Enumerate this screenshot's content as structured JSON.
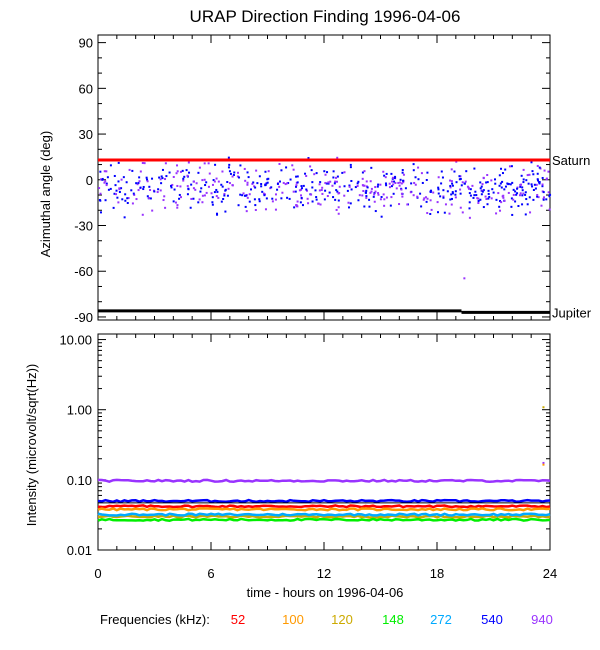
{
  "chart_data": {
    "title": "URAP Direction Finding  1996-04-06",
    "xlabel": "time - hours on 1996-04-06",
    "xlim": [
      0,
      24
    ],
    "xticks": [
      0,
      6,
      12,
      18,
      24
    ],
    "panels": [
      {
        "type": "scatter",
        "ylabel": "Azimuthal angle (deg)",
        "ylim": [
          -92,
          95
        ],
        "yticks": [
          90,
          60,
          30,
          0,
          -30,
          -60,
          -90
        ],
        "lines": [
          {
            "name": "Saturn",
            "color": "#ff0000",
            "y": 13
          },
          {
            "name": "Jupiter",
            "color": "#000000",
            "segments": [
              {
                "x": [
                  0,
                  19.3
                ],
                "y": -86
              },
              {
                "x": [
                  19.3,
                  24
                ],
                "y": -87
              }
            ]
          }
        ],
        "scatter": {
          "x_range": [
            0,
            24
          ],
          "y_center": -5,
          "y_spread": 11,
          "colors": [
            "#0000ff",
            "#9933ff"
          ],
          "outliers": [
            {
              "x": 19.4,
              "y": -64,
              "color": "#9933ff"
            }
          ]
        }
      },
      {
        "type": "line",
        "scale": "log",
        "ylabel": "Intensity (microvolt/sqrt(Hz))",
        "ylim": [
          0.01,
          12
        ],
        "yticks": [
          10.0,
          1.0,
          0.1,
          0.01
        ],
        "ytick_labels": [
          "10.00",
          "1.00",
          "0.10",
          "0.01"
        ],
        "series": [
          {
            "name": "52",
            "color": "#ff0000",
            "value": 0.042
          },
          {
            "name": "100",
            "color": "#ff9900",
            "value": 0.038
          },
          {
            "name": "120",
            "color": "#ccaa00",
            "value": 0.03
          },
          {
            "name": "148",
            "color": "#00ee00",
            "value": 0.027
          },
          {
            "name": "272",
            "color": "#00aaff",
            "value": 0.032
          },
          {
            "name": "540",
            "color": "#0000ff",
            "value": 0.05
          },
          {
            "name": "940",
            "color": "#9933ff",
            "value": 0.097
          }
        ],
        "black_line": 0.047,
        "outliers": [
          {
            "x": 23.6,
            "y": 1.12,
            "color": "#ccaa00"
          },
          {
            "x": 23.6,
            "y": 0.18,
            "color": "#9933ff"
          },
          {
            "x": 23.6,
            "y": 0.17,
            "color": "#ff9900"
          }
        ]
      }
    ],
    "legend": {
      "label": "Frequencies (kHz):",
      "items": [
        {
          "name": "52",
          "color": "#ff0000"
        },
        {
          "name": "100",
          "color": "#ff9900"
        },
        {
          "name": "120",
          "color": "#ccaa00"
        },
        {
          "name": "148",
          "color": "#00ee00"
        },
        {
          "name": "272",
          "color": "#00aaff"
        },
        {
          "name": "540",
          "color": "#0000ff"
        },
        {
          "name": "940",
          "color": "#9933ff"
        }
      ]
    }
  }
}
